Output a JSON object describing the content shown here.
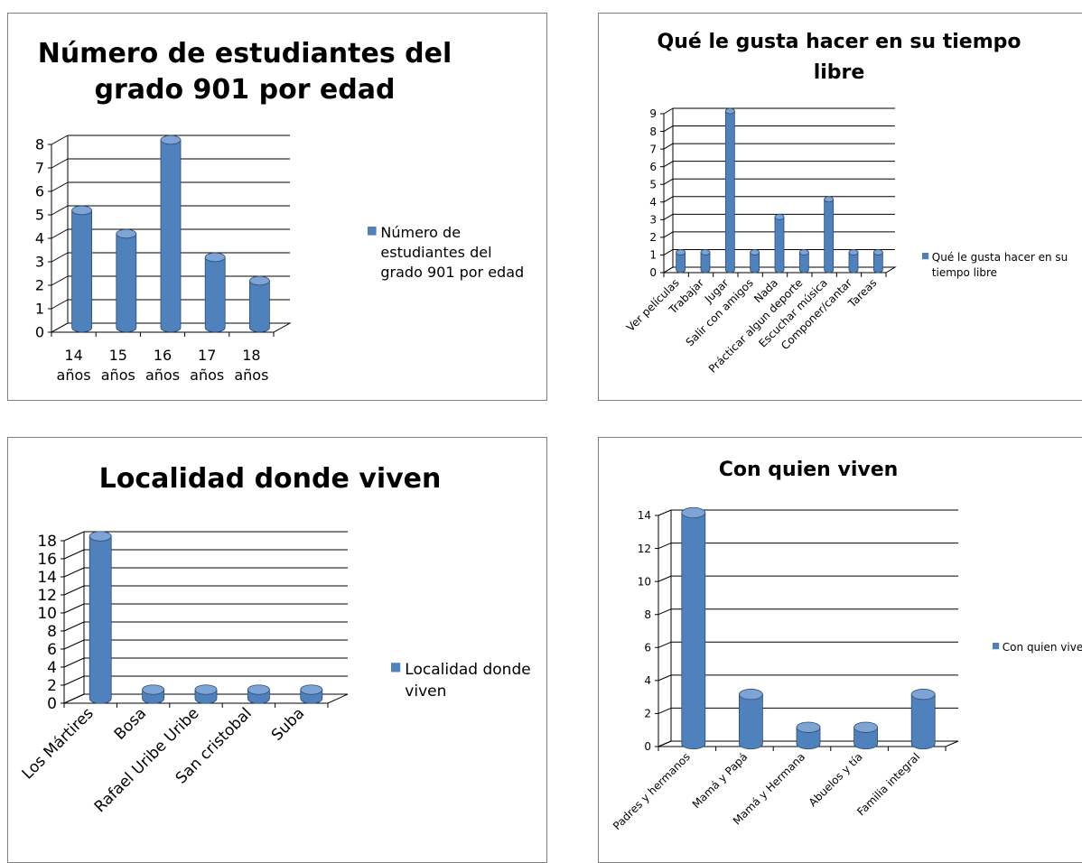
{
  "colors": {
    "bar": "#4f81bd",
    "bar_dark": "#2c4d75",
    "bar_light": "#7ea4d6",
    "grid": "#000000"
  },
  "chart_data": [
    {
      "type": "bar",
      "title_lines": [
        "Número de estudiantes del",
        "grado 901 por edad"
      ],
      "categories": [
        [
          "14",
          "años"
        ],
        [
          "15",
          "años"
        ],
        [
          "16",
          "años"
        ],
        [
          "17",
          "años"
        ],
        [
          "18",
          "años"
        ]
      ],
      "series": [
        {
          "name_lines": [
            "Número de",
            "estudiantes del",
            "grado 901 por edad"
          ],
          "values": [
            5,
            4,
            8,
            3,
            2
          ]
        }
      ],
      "ylim": [
        0,
        8
      ],
      "ystep": 1,
      "grid": true,
      "legend": "right"
    },
    {
      "type": "bar",
      "title_lines": [
        "Qué le gusta hacer en su tiempo",
        "libre"
      ],
      "categories": [
        "Ver películas",
        "Trabajar",
        "Jugar",
        "Salir con amigos",
        "Nada",
        "Prácticar algun deporte",
        "Escuchar música",
        "Componer/cantar",
        "Tareas"
      ],
      "series": [
        {
          "name_lines": [
            "Qué le gusta hacer en su",
            "tiempo libre"
          ],
          "values": [
            1,
            1,
            9,
            1,
            3,
            1,
            4,
            1,
            1
          ]
        }
      ],
      "ylim": [
        0,
        9
      ],
      "ystep": 1,
      "grid": true,
      "legend": "right"
    },
    {
      "type": "bar",
      "title_lines": [
        "Localidad donde viven"
      ],
      "categories": [
        "Los Mártires",
        "Bosa",
        "Rafael Uribe Uribe",
        "San cristobal",
        "Suba"
      ],
      "series": [
        {
          "name_lines": [
            "Localidad donde",
            "viven"
          ],
          "values": [
            18,
            1,
            1,
            1,
            1
          ]
        }
      ],
      "ylim": [
        0,
        18
      ],
      "ystep": 2,
      "grid": true,
      "legend": "right"
    },
    {
      "type": "bar",
      "title_lines": [
        "Con quien viven"
      ],
      "categories": [
        "Padres y hermanos",
        "Mamá y Papá",
        "Mamá y Hermana",
        "Abuelos y tía",
        "Familia integral"
      ],
      "series": [
        {
          "name_lines": [
            "Con quien viven"
          ],
          "values": [
            14,
            3,
            1,
            1,
            3
          ]
        }
      ],
      "ylim": [
        0,
        14
      ],
      "ystep": 2,
      "grid": true,
      "legend": "right"
    }
  ]
}
